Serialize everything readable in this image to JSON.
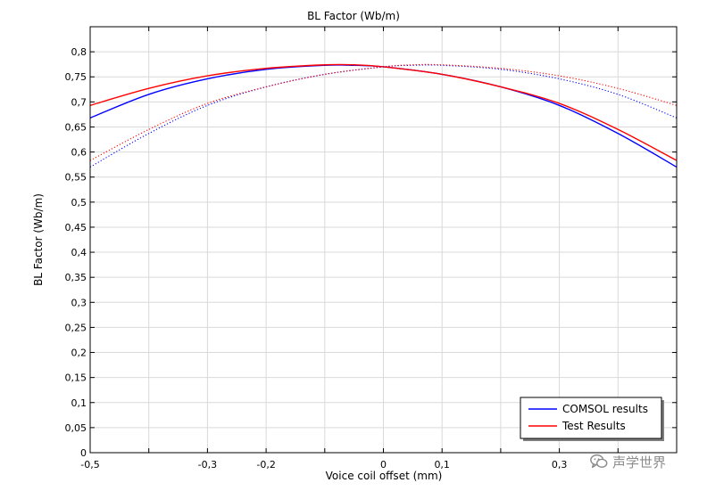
{
  "chart_data": {
    "type": "line",
    "title": "BL Factor (Wb/m)",
    "xlabel": "Voice coil offset (mm)",
    "ylabel": "BL Factor (Wb/m)",
    "xlim": [
      -0.5,
      0.5
    ],
    "ylim": [
      0,
      0.85
    ],
    "x_ticks": [
      -0.5,
      -0.4,
      -0.3,
      -0.2,
      -0.1,
      0,
      0.1,
      0.2,
      0.3,
      0.4,
      0.5
    ],
    "x_tick_labels": [
      "-0,5",
      "",
      "-0,3",
      "-0,2",
      "",
      "0",
      "0,1",
      "",
      "0,3",
      "",
      ""
    ],
    "y_ticks": [
      0,
      0.05,
      0.1,
      0.15,
      0.2,
      0.25,
      0.3,
      0.35,
      0.4,
      0.45,
      0.5,
      0.55,
      0.6,
      0.65,
      0.7,
      0.75,
      0.8
    ],
    "y_tick_labels": [
      "0",
      "0,05",
      "0,1",
      "0,15",
      "0,2",
      "0,25",
      "0,3",
      "0,35",
      "0,4",
      "0,45",
      "0,5",
      "0,55",
      "0,6",
      "0,65",
      "0,7",
      "0,75",
      "0,8"
    ],
    "grid": true,
    "legend_position": "bottom-right",
    "legend": [
      {
        "label": "COMSOL results",
        "color": "#0000ff"
      },
      {
        "label": "Test Results",
        "color": "#ff0000"
      }
    ],
    "series": [
      {
        "legend_index": 0,
        "color": "#0000ff",
        "style": "solid",
        "x": [
          -0.5,
          -0.4,
          -0.3,
          -0.2,
          -0.1,
          -0.05,
          0,
          0.1,
          0.2,
          0.3,
          0.4,
          0.5
        ],
        "y": [
          0.668,
          0.715,
          0.746,
          0.765,
          0.773,
          0.773,
          0.77,
          0.755,
          0.73,
          0.693,
          0.637,
          0.57
        ]
      },
      {
        "legend_index": 1,
        "color": "#ff0000",
        "style": "solid",
        "x": [
          -0.5,
          -0.4,
          -0.3,
          -0.2,
          -0.1,
          -0.05,
          0,
          0.1,
          0.2,
          0.3,
          0.4,
          0.5
        ],
        "y": [
          0.693,
          0.727,
          0.752,
          0.767,
          0.774,
          0.774,
          0.77,
          0.755,
          0.73,
          0.697,
          0.645,
          0.583
        ]
      },
      {
        "color": "#0000ff",
        "style": "dotted",
        "x": [
          -0.5,
          -0.4,
          -0.3,
          -0.2,
          -0.1,
          0,
          0.05,
          0.1,
          0.2,
          0.3,
          0.4,
          0.5
        ],
        "y": [
          0.57,
          0.637,
          0.693,
          0.73,
          0.755,
          0.77,
          0.773,
          0.773,
          0.765,
          0.746,
          0.715,
          0.668
        ]
      },
      {
        "color": "#ff0000",
        "style": "dotted",
        "x": [
          -0.5,
          -0.4,
          -0.3,
          -0.2,
          -0.1,
          0,
          0.05,
          0.1,
          0.2,
          0.3,
          0.4,
          0.5
        ],
        "y": [
          0.583,
          0.645,
          0.697,
          0.73,
          0.755,
          0.77,
          0.774,
          0.774,
          0.767,
          0.752,
          0.727,
          0.693
        ]
      }
    ]
  },
  "watermark": {
    "text": "声学世界",
    "icon": "wechat-icon",
    "color": "#8c8c8c"
  }
}
